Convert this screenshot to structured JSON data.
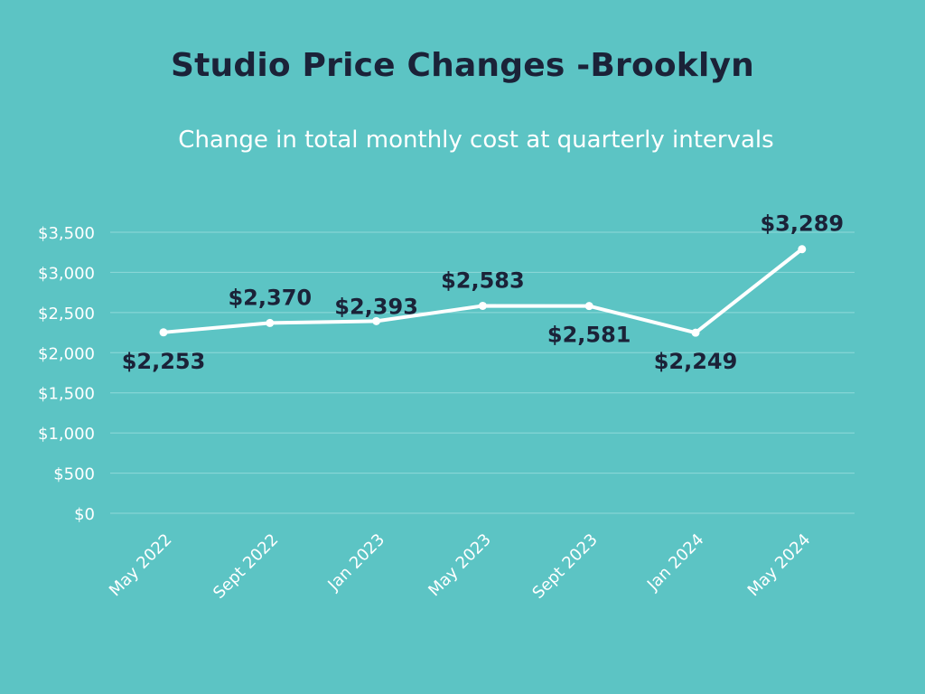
{
  "colors": {
    "background": "#5cc4c4",
    "line": "#ffffff",
    "grid": "#8fd9d9",
    "label": "#1b2238",
    "axis_text": "#ffffff"
  },
  "chart_data": {
    "type": "line",
    "title": "Studio Price Changes -Brooklyn",
    "subtitle": "Change in total monthly cost at quarterly intervals",
    "categories": [
      "May 2022",
      "Sept 2022",
      "Jan 2023",
      "May 2023",
      "Sept 2023",
      "Jan 2024",
      "May 2024"
    ],
    "series": [
      {
        "values": [
          2253,
          2370,
          2393,
          2583,
          2581,
          2249,
          3289
        ]
      }
    ],
    "data_labels": [
      "$2,253",
      "$2,370",
      "$2,393",
      "$2,583",
      "$2,581",
      "$2,249",
      "$3,289"
    ],
    "yticks": [
      "$0",
      "$500",
      "$1,000",
      "$1,500",
      "$2,000",
      "$2,500",
      "$3,000",
      "$3,500"
    ],
    "ylim": [
      0,
      3500
    ],
    "grid": true,
    "legend": "none"
  }
}
